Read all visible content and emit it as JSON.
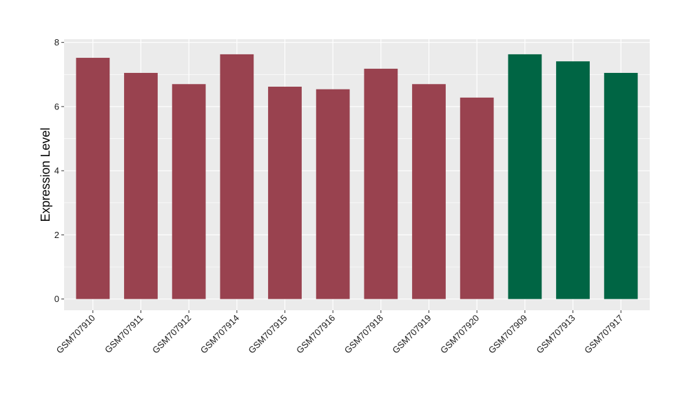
{
  "chart_data": {
    "type": "bar",
    "title": "",
    "xlabel": "",
    "ylabel": "Expression Level",
    "ylim": [
      -0.35,
      8.1
    ],
    "yticks": [
      0,
      2,
      4,
      6,
      8
    ],
    "grid": true,
    "categories": [
      "GSM707910",
      "GSM707911",
      "GSM707912",
      "GSM707914",
      "GSM707915",
      "GSM707916",
      "GSM707918",
      "GSM707919",
      "GSM707920",
      "GSM707909",
      "GSM707913",
      "GSM707917"
    ],
    "values": [
      7.52,
      7.05,
      6.7,
      7.63,
      6.62,
      6.54,
      7.18,
      6.7,
      6.28,
      7.63,
      7.41,
      7.05
    ],
    "groups": [
      "a",
      "a",
      "a",
      "a",
      "a",
      "a",
      "a",
      "a",
      "a",
      "b",
      "b",
      "b"
    ],
    "colors": {
      "a": "#99424f",
      "b": "#006544"
    },
    "panel_background": "#ebebeb",
    "grid_color": "#ffffff"
  }
}
